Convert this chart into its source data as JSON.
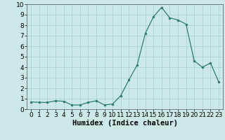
{
  "x": [
    0,
    1,
    2,
    3,
    4,
    5,
    6,
    7,
    8,
    9,
    10,
    11,
    12,
    13,
    14,
    15,
    16,
    17,
    18,
    19,
    20,
    21,
    22,
    23
  ],
  "y": [
    0.7,
    0.65,
    0.65,
    0.8,
    0.75,
    0.4,
    0.4,
    0.65,
    0.8,
    0.4,
    0.5,
    1.3,
    2.8,
    4.2,
    7.2,
    8.8,
    9.7,
    8.7,
    8.5,
    8.1,
    4.6,
    4.0,
    4.4,
    2.6
  ],
  "line_color": "#2e7d6e",
  "marker": "o",
  "marker_size": 2,
  "bg_color": "#cce9e7",
  "grid_color": "#aad4d1",
  "xlabel": "Humidex (Indice chaleur)",
  "xlim": [
    -0.5,
    23.5
  ],
  "ylim": [
    0,
    10
  ],
  "xticks": [
    0,
    1,
    2,
    3,
    4,
    5,
    6,
    7,
    8,
    9,
    10,
    11,
    12,
    13,
    14,
    15,
    16,
    17,
    18,
    19,
    20,
    21,
    22,
    23
  ],
  "yticks": [
    0,
    1,
    2,
    3,
    4,
    5,
    6,
    7,
    8,
    9,
    10
  ],
  "tick_label_fontsize": 6.5,
  "xlabel_fontsize": 7.5
}
